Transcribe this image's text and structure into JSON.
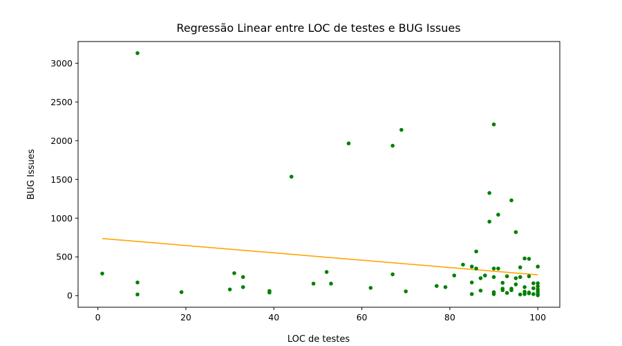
{
  "chart_data": {
    "type": "scatter",
    "title": "Regressão Linear entre LOC de testes e BUG Issues",
    "xlabel": "LOC de testes",
    "ylabel": "BUG Issues",
    "xlim": [
      -4.5,
      105
    ],
    "ylim": [
      -150,
      3280
    ],
    "x_ticks": [
      0,
      20,
      40,
      60,
      80,
      100
    ],
    "y_ticks": [
      0,
      500,
      1000,
      1500,
      2000,
      2500,
      3000
    ],
    "grid": false,
    "legend": "none",
    "colors": {
      "points": "#008000",
      "regression": "#FFA500"
    },
    "points": [
      {
        "x": 1,
        "y": 285
      },
      {
        "x": 9,
        "y": 3130
      },
      {
        "x": 9,
        "y": 170
      },
      {
        "x": 9,
        "y": 15
      },
      {
        "x": 19,
        "y": 45
      },
      {
        "x": 30,
        "y": 80
      },
      {
        "x": 31,
        "y": 290
      },
      {
        "x": 33,
        "y": 240
      },
      {
        "x": 33,
        "y": 110
      },
      {
        "x": 39,
        "y": 60
      },
      {
        "x": 39,
        "y": 40
      },
      {
        "x": 44,
        "y": 1535
      },
      {
        "x": 49,
        "y": 155
      },
      {
        "x": 52,
        "y": 305
      },
      {
        "x": 53,
        "y": 155
      },
      {
        "x": 57,
        "y": 1965
      },
      {
        "x": 62,
        "y": 100
      },
      {
        "x": 67,
        "y": 1935
      },
      {
        "x": 67,
        "y": 275
      },
      {
        "x": 69,
        "y": 2140
      },
      {
        "x": 70,
        "y": 55
      },
      {
        "x": 77,
        "y": 125
      },
      {
        "x": 79,
        "y": 110
      },
      {
        "x": 81,
        "y": 260
      },
      {
        "x": 83,
        "y": 400
      },
      {
        "x": 85,
        "y": 375
      },
      {
        "x": 85,
        "y": 170
      },
      {
        "x": 85,
        "y": 20
      },
      {
        "x": 86,
        "y": 570
      },
      {
        "x": 86,
        "y": 350
      },
      {
        "x": 87,
        "y": 225
      },
      {
        "x": 87,
        "y": 65
      },
      {
        "x": 88,
        "y": 260
      },
      {
        "x": 89,
        "y": 1325
      },
      {
        "x": 89,
        "y": 955
      },
      {
        "x": 90,
        "y": 2210
      },
      {
        "x": 90,
        "y": 350
      },
      {
        "x": 90,
        "y": 240
      },
      {
        "x": 90,
        "y": 45
      },
      {
        "x": 90,
        "y": 20
      },
      {
        "x": 91,
        "y": 1045
      },
      {
        "x": 91,
        "y": 350
      },
      {
        "x": 92,
        "y": 165
      },
      {
        "x": 92,
        "y": 90
      },
      {
        "x": 92,
        "y": 70
      },
      {
        "x": 93,
        "y": 250
      },
      {
        "x": 93,
        "y": 35
      },
      {
        "x": 94,
        "y": 1230
      },
      {
        "x": 94,
        "y": 90
      },
      {
        "x": 94,
        "y": 70
      },
      {
        "x": 95,
        "y": 820
      },
      {
        "x": 95,
        "y": 225
      },
      {
        "x": 95,
        "y": 145
      },
      {
        "x": 96,
        "y": 365
      },
      {
        "x": 96,
        "y": 240
      },
      {
        "x": 96,
        "y": 15
      },
      {
        "x": 97,
        "y": 480
      },
      {
        "x": 97,
        "y": 110
      },
      {
        "x": 97,
        "y": 50
      },
      {
        "x": 97,
        "y": 20
      },
      {
        "x": 98,
        "y": 475
      },
      {
        "x": 98,
        "y": 250
      },
      {
        "x": 98,
        "y": 40
      },
      {
        "x": 98,
        "y": 30
      },
      {
        "x": 99,
        "y": 160
      },
      {
        "x": 99,
        "y": 95
      },
      {
        "x": 99,
        "y": 20
      },
      {
        "x": 100,
        "y": 375
      },
      {
        "x": 100,
        "y": 160
      },
      {
        "x": 100,
        "y": 120
      },
      {
        "x": 100,
        "y": 80
      },
      {
        "x": 100,
        "y": 50
      },
      {
        "x": 100,
        "y": 20
      },
      {
        "x": 100,
        "y": 5
      }
    ],
    "regression": {
      "x": [
        1,
        100
      ],
      "y": [
        737,
        268
      ]
    }
  }
}
